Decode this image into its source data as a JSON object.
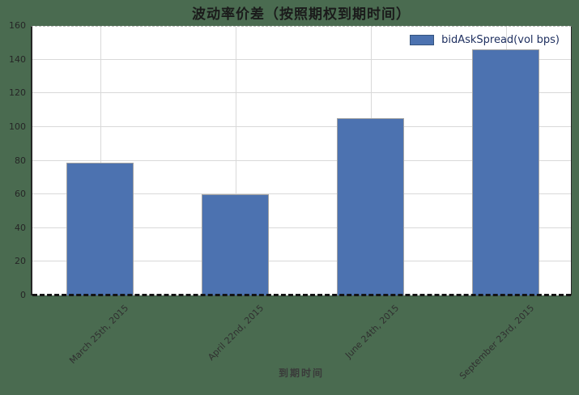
{
  "chart_data": {
    "type": "bar",
    "title": "波动率价差（按照期权到期时间）",
    "xlabel": "到期时间",
    "ylabel": "",
    "categories": [
      "March 25th, 2015",
      "April 22nd, 2015",
      "June 24th, 2015",
      "September 23rd, 2015"
    ],
    "values": [
      79,
      60,
      105,
      146
    ],
    "ylim": [
      0,
      160
    ],
    "ytick_step": 20,
    "yticks": [
      0,
      20,
      40,
      60,
      80,
      100,
      120,
      140,
      160
    ],
    "grid": true,
    "legend_position": "top-right",
    "legend": [
      {
        "label": "bidAskSpread(vol bps)",
        "color": "#4C72B0"
      }
    ]
  },
  "colors": {
    "figure_background": "#4A6B50",
    "plot_background": "#FFFFFF",
    "bar_fill": "#4C72B0",
    "bar_edge": "#A3A3A3",
    "gridline": "#D9D9D9",
    "bottom_spine": "#141414",
    "title_text": "#1B1B1B",
    "tick_text": "#303030",
    "legend_text": "#1F3060"
  }
}
